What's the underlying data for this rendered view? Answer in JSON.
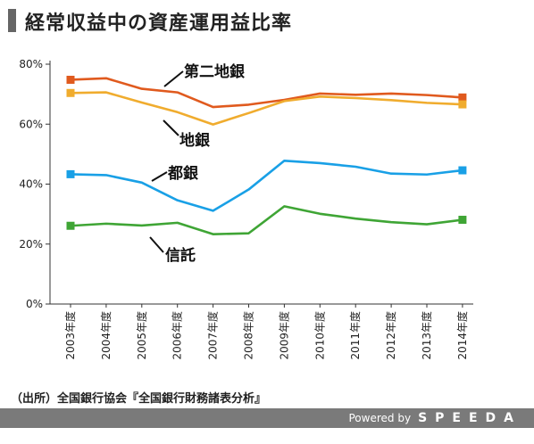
{
  "header": {
    "title": "経常収益中の資産運用益比率",
    "title_bar_color": "#666666"
  },
  "chart_data": {
    "type": "line",
    "title": "経常収益中の資産運用益比率",
    "xlabel": "",
    "ylabel": "",
    "x": [
      "2003年度",
      "2004年度",
      "2005年度",
      "2006年度",
      "2007年度",
      "2008年度",
      "2009年度",
      "2010年度",
      "2011年度",
      "2012年度",
      "2013年度",
      "2014年度"
    ],
    "ylim": [
      0,
      80
    ],
    "yticks": [
      0,
      20,
      40,
      60,
      80
    ],
    "ytick_labels": [
      "0%",
      "20%",
      "40%",
      "60%",
      "80%"
    ],
    "grid": false,
    "legend": "inline labels",
    "series": [
      {
        "name": "第二地銀",
        "color": "#E05A1E",
        "values": [
          74.8,
          75.3,
          71.8,
          70.6,
          65.7,
          66.5,
          68.1,
          70.2,
          69.8,
          70.2,
          69.7,
          68.9
        ],
        "marker_indices": [
          0,
          11
        ]
      },
      {
        "name": "地銀",
        "color": "#F0AC2E",
        "values": [
          70.4,
          70.6,
          67.2,
          64.0,
          59.9,
          63.7,
          67.7,
          69.2,
          68.7,
          68.0,
          67.1,
          66.6
        ],
        "marker_indices": [
          0,
          11
        ]
      },
      {
        "name": "都銀",
        "color": "#19A0E6",
        "values": [
          43.3,
          43.0,
          40.5,
          34.6,
          31.1,
          38.2,
          47.8,
          47.0,
          45.8,
          43.5,
          43.2,
          44.6
        ],
        "marker_indices": [
          0,
          11
        ]
      },
      {
        "name": "信託",
        "color": "#3FA535",
        "values": [
          26.1,
          26.8,
          26.2,
          27.1,
          23.3,
          23.6,
          32.6,
          30.1,
          28.5,
          27.3,
          26.6,
          28.1
        ],
        "marker_indices": [
          0,
          11
        ]
      }
    ]
  },
  "source": "（出所）全国銀行協会『全国銀行財務諸表分析』",
  "footer": {
    "powered": "Powered by",
    "brand": "SPEEDA",
    "background": "#7a7a7a"
  }
}
